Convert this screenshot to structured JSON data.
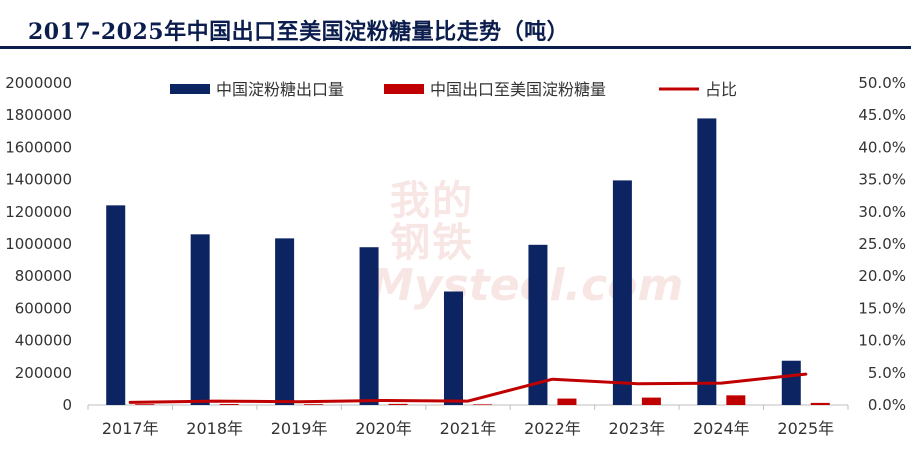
{
  "title": "2017-2025年中国出口至美国淀粉糖量比走势（吨）",
  "watermark": {
    "cn_line1": "我的",
    "cn_line2": "钢铁",
    "en": "Mysteel.com"
  },
  "colors": {
    "bar_total": "#0c2461",
    "bar_us": "#c00000",
    "line_ratio": "#c00000",
    "title": "#0b1d4d"
  },
  "chart_data": {
    "type": "bar",
    "title": "2017-2025年中国出口至美国淀粉糖量比走势（吨）",
    "categories": [
      "2017年",
      "2018年",
      "2019年",
      "2020年",
      "2021年",
      "2022年",
      "2023年",
      "2024年",
      "2025年"
    ],
    "series": [
      {
        "name": "中国淀粉糖出口量",
        "type": "bar",
        "axis": "left",
        "color": "#0c2461",
        "values": [
          1240000,
          1060000,
          1035000,
          980000,
          705000,
          995000,
          1395000,
          1780000,
          275000
        ]
      },
      {
        "name": "中国出口至美国淀粉糖量",
        "type": "bar",
        "axis": "left",
        "color": "#c00000",
        "values": [
          5000,
          6000,
          5000,
          7000,
          4000,
          40000,
          46000,
          60000,
          13000
        ]
      },
      {
        "name": "占比",
        "type": "line",
        "axis": "right",
        "color": "#c00000",
        "values": [
          0.4,
          0.6,
          0.5,
          0.7,
          0.6,
          4.0,
          3.3,
          3.4,
          4.8
        ]
      }
    ],
    "y_left": {
      "min": 0,
      "max": 2000000,
      "step": 200000,
      "ticks": [
        "0",
        "200000",
        "400000",
        "600000",
        "800000",
        "1000000",
        "1200000",
        "1400000",
        "1600000",
        "1800000",
        "2000000"
      ]
    },
    "y_right": {
      "min": 0,
      "max": 50,
      "step": 5,
      "ticks": [
        "0.0%",
        "5.0%",
        "10.0%",
        "15.0%",
        "20.0%",
        "25.0%",
        "30.0%",
        "35.0%",
        "40.0%",
        "45.0%",
        "50.0%"
      ]
    },
    "legend_position": "top",
    "grid": false
  }
}
